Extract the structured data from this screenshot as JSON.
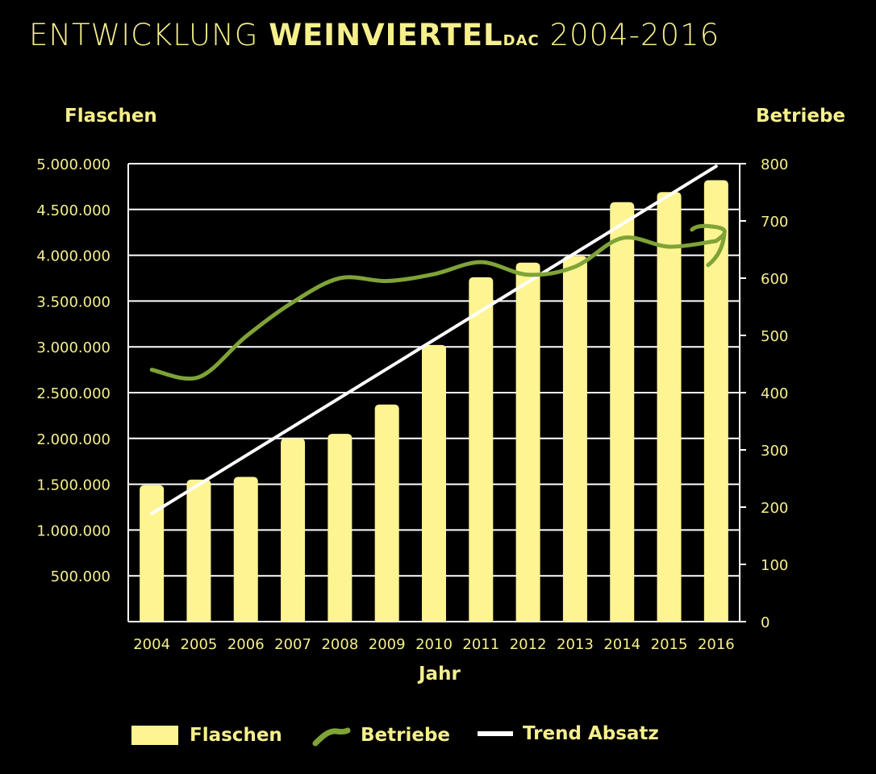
{
  "title": {
    "prefix": "ENTWICKLUNG ",
    "highlight": "WEINVIERTEL",
    "small": "DAC",
    "suffix": " 2004-2016"
  },
  "colors": {
    "background": "#000000",
    "text": "#f5ef8c",
    "bar": "#fef492",
    "betriebe_line": "#7fa337",
    "trend_line": "#ffffff",
    "grid": "#ffffff"
  },
  "chart_data": {
    "type": "bar",
    "title": "ENTWICKLUNG WEINVIERTEL DAC 2004-2016",
    "xlabel": "Jahr",
    "ylabel": "Flaschen",
    "y2label": "Betriebe",
    "categories": [
      "2004",
      "2005",
      "2006",
      "2007",
      "2008",
      "2009",
      "2010",
      "2011",
      "2012",
      "2013",
      "2014",
      "2015",
      "2016"
    ],
    "ylim": [
      0,
      5000000
    ],
    "y2lim": [
      0,
      800
    ],
    "y_ticks": [
      "500.000",
      "1.000.000",
      "1.500.000",
      "2.000.000",
      "2.500.000",
      "3.000.000",
      "3.500.000",
      "4.000.000",
      "4.500.000",
      "5.000.000"
    ],
    "y2_ticks": [
      "0",
      "100",
      "200",
      "300",
      "400",
      "500",
      "600",
      "700",
      "800"
    ],
    "legend_position": "bottom",
    "grid": true,
    "series": [
      {
        "name": "Flaschen",
        "type": "bar",
        "axis": "left",
        "values": [
          1490000,
          1550000,
          1580000,
          2000000,
          2050000,
          2370000,
          3020000,
          3760000,
          3920000,
          3990000,
          4580000,
          4690000,
          4820000
        ]
      },
      {
        "name": "Betriebe",
        "type": "line",
        "axis": "right",
        "values": [
          440,
          427,
          498,
          558,
          600,
          595,
          607,
          628,
          606,
          620,
          670,
          655,
          665
        ]
      },
      {
        "name": "Trend Absatz",
        "type": "line",
        "axis": "left",
        "values": [
          1180000,
          1496000,
          1812000,
          2128000,
          2444000,
          2760000,
          3076000,
          3392000,
          3708000,
          4024000,
          4340000,
          4656000,
          4972000
        ]
      }
    ]
  }
}
